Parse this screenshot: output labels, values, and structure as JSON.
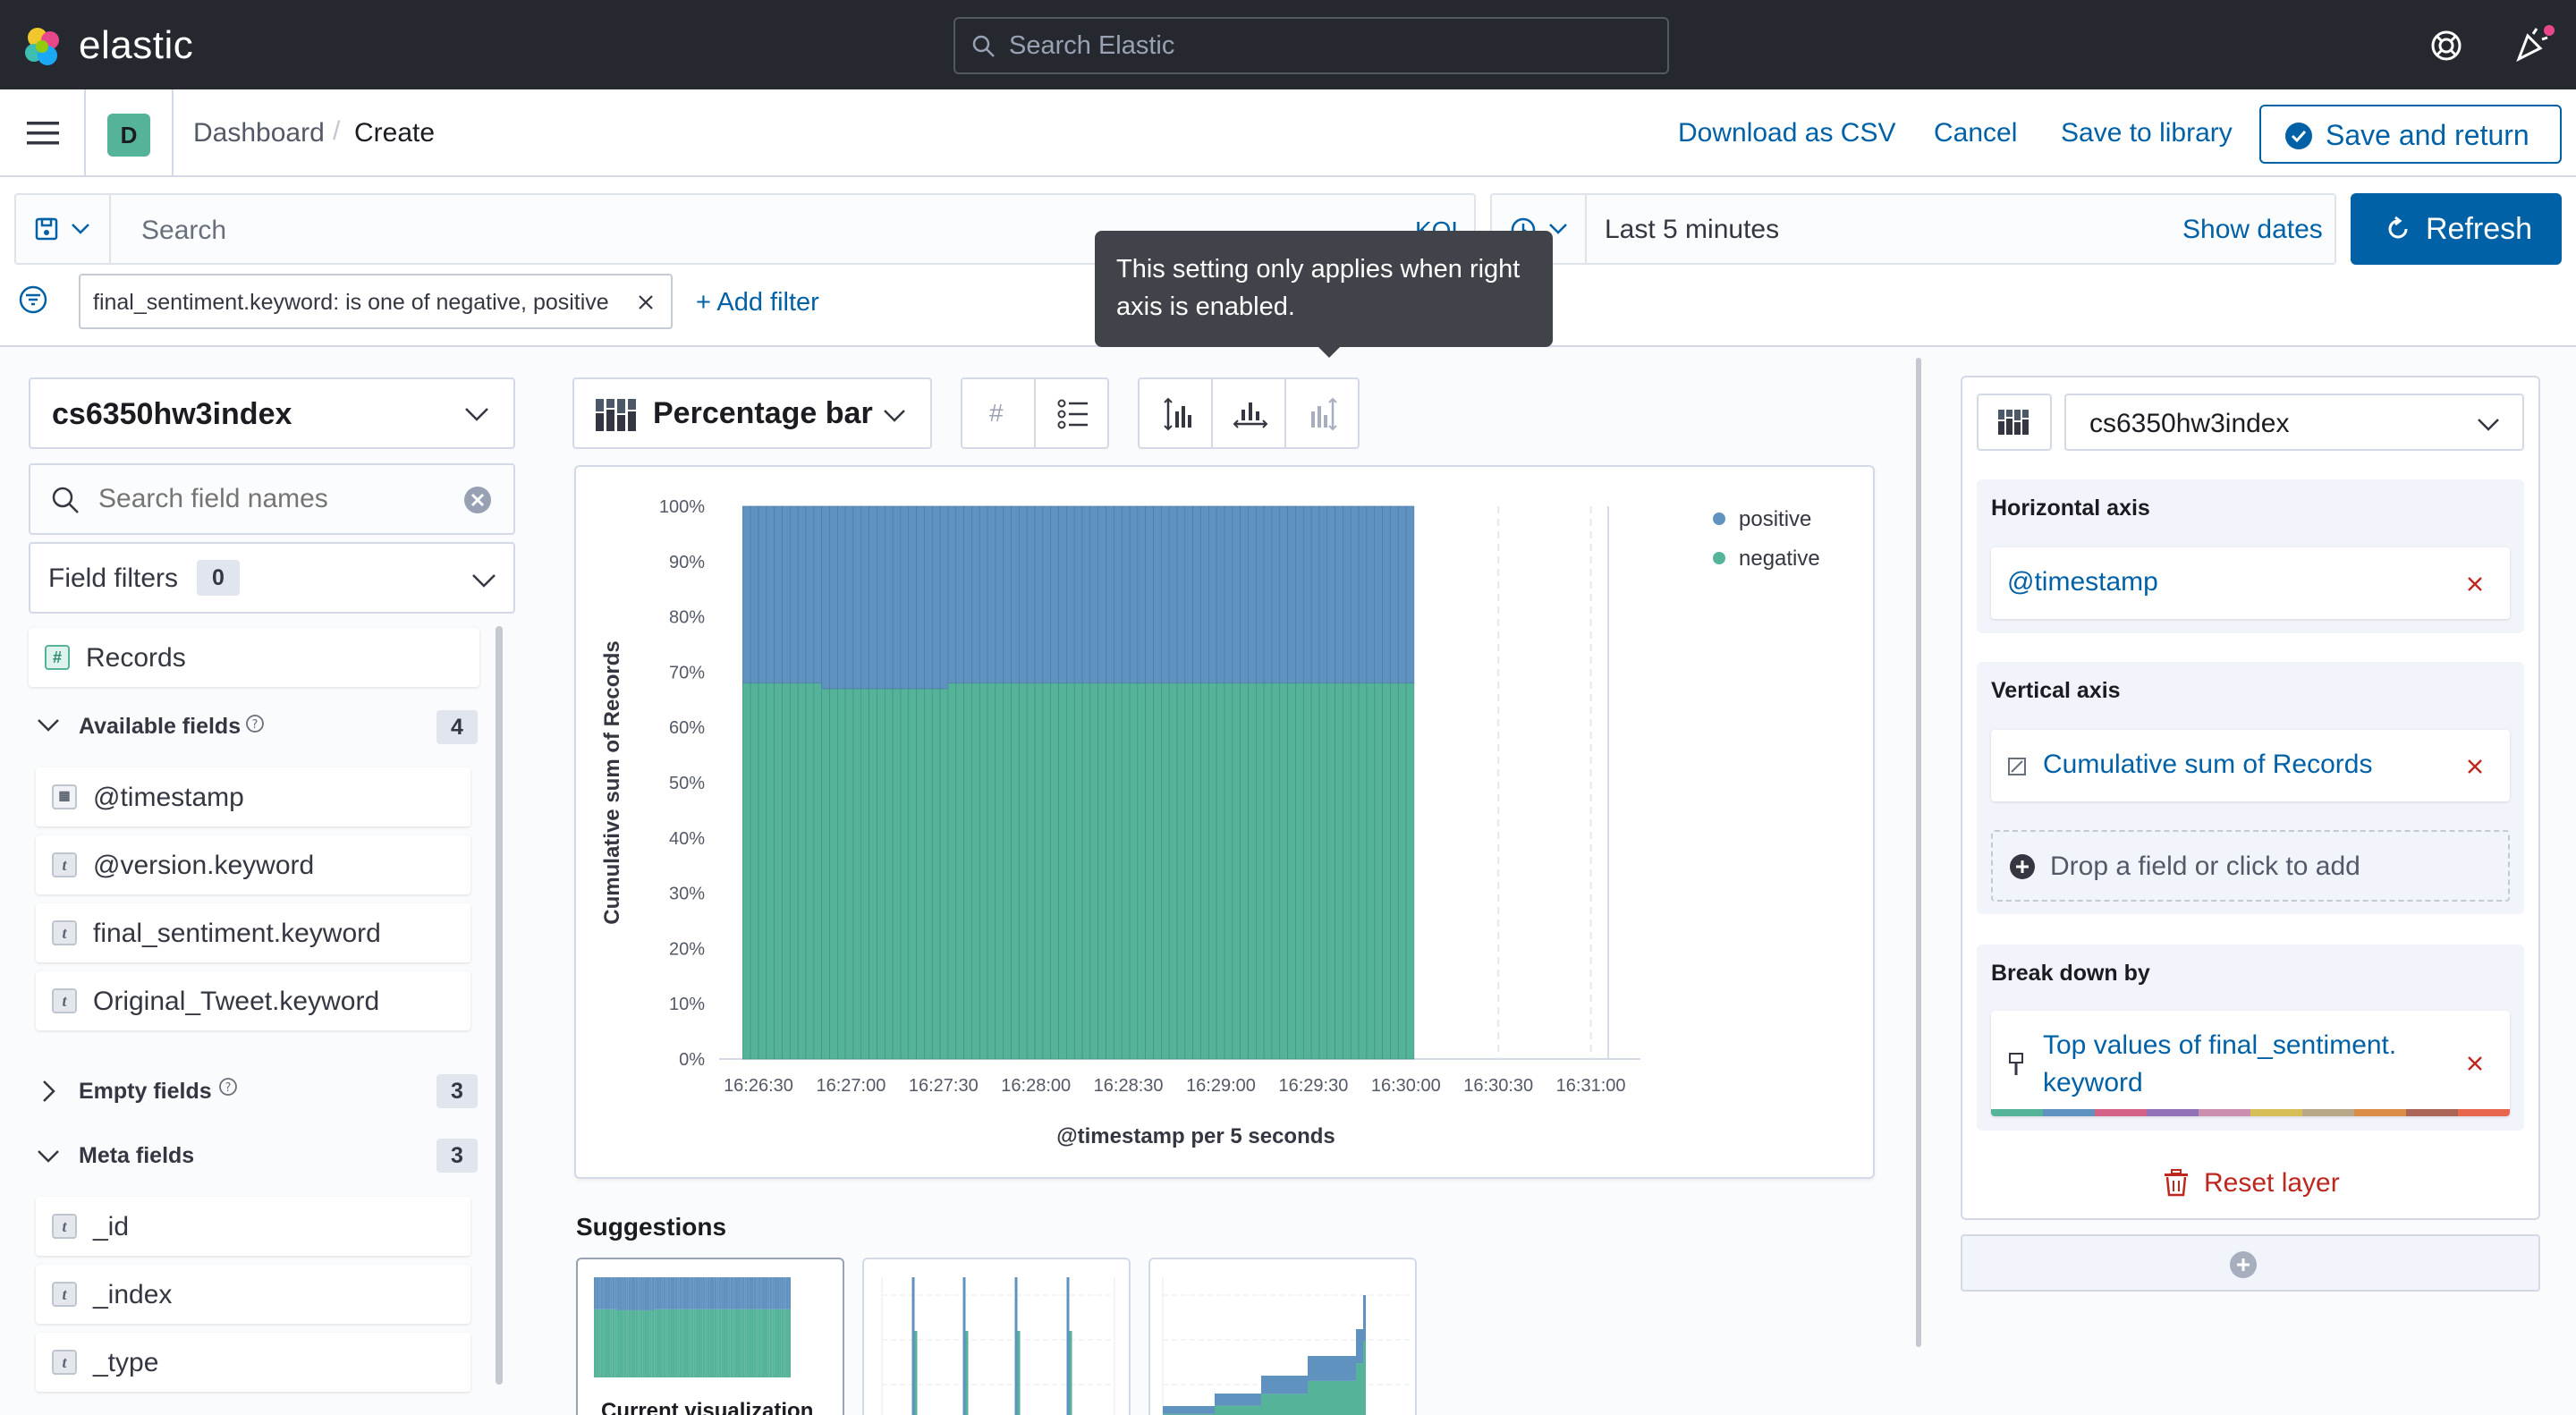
{
  "header": {
    "brand": "elastic",
    "search_placeholder": "Search Elastic"
  },
  "nav": {
    "space_initial": "D",
    "breadcrumb": [
      "Dashboard",
      "Create"
    ],
    "download_csv": "Download as CSV",
    "cancel": "Cancel",
    "save_to_library": "Save to library",
    "save_and_return": "Save and return"
  },
  "query": {
    "placeholder": "Search",
    "language": "KQL",
    "time_range": "Last 5 minutes",
    "show_dates": "Show dates",
    "refresh": "Refresh",
    "filter_pill": "final_sentiment.keyword: is one of negative, positive",
    "add_filter": "+ Add filter"
  },
  "tooltip": {
    "text": "This setting only applies when right axis is enabled."
  },
  "left_panel": {
    "index_pattern": "cs6350hw3index",
    "search_placeholder": "Search field names",
    "field_filters": "Field filters",
    "field_filters_count": "0",
    "records": "Records",
    "available_fields": {
      "label": "Available fields",
      "count": "4"
    },
    "available": [
      {
        "name": "@timestamp",
        "type": "date"
      },
      {
        "name": "@version.keyword",
        "type": "t"
      },
      {
        "name": "final_sentiment.keyword",
        "type": "t"
      },
      {
        "name": "Original_Tweet.keyword",
        "type": "t"
      }
    ],
    "empty_fields": {
      "label": "Empty fields",
      "count": "3"
    },
    "meta_fields": {
      "label": "Meta fields",
      "count": "3"
    },
    "meta": [
      {
        "name": "_id",
        "type": "t"
      },
      {
        "name": "_index",
        "type": "t"
      },
      {
        "name": "_type",
        "type": "t"
      }
    ]
  },
  "toolbar": {
    "chart_type": "Percentage bar"
  },
  "chart_data": {
    "type": "bar",
    "stacking": "percentage",
    "title": "",
    "xlabel": "@timestamp per 5 seconds",
    "ylabel": "Cumulative sum of Records",
    "ylim": [
      0,
      100
    ],
    "y_ticks": [
      "0%",
      "10%",
      "20%",
      "30%",
      "40%",
      "50%",
      "60%",
      "70%",
      "80%",
      "90%",
      "100%"
    ],
    "x_ticks": [
      "16:26:30",
      "16:27:00",
      "16:27:30",
      "16:28:00",
      "16:28:30",
      "16:29:00",
      "16:29:30",
      "16:30:00",
      "16:30:30",
      "16:31:00"
    ],
    "legend_position": "top-right",
    "grid": true,
    "series": [
      {
        "name": "positive",
        "color": "#6092c0"
      },
      {
        "name": "negative",
        "color": "#54b399"
      }
    ],
    "negative_share_percent": [
      68,
      68,
      68,
      68,
      68,
      68,
      68,
      68,
      68,
      68,
      67,
      67,
      67,
      67,
      67,
      67,
      67,
      67,
      67,
      67,
      67,
      67,
      67,
      67,
      67,
      67,
      68,
      68,
      68,
      68,
      68,
      68,
      68,
      68,
      68,
      68,
      68,
      68,
      68,
      68,
      68,
      68,
      68,
      68,
      68,
      68,
      68,
      68,
      68,
      68,
      68,
      68,
      68,
      68,
      68,
      68,
      68,
      68,
      68,
      68,
      68,
      68,
      68,
      68,
      68,
      68,
      68,
      68,
      68,
      68,
      68,
      68,
      68,
      68,
      68,
      68,
      68,
      68,
      68,
      68,
      68,
      68,
      68,
      68,
      68
    ]
  },
  "suggestions": {
    "title": "Suggestions",
    "current": "Current visualization"
  },
  "right_panel": {
    "index_pattern": "cs6350hw3index",
    "horizontal_axis": {
      "label": "Horizontal axis",
      "field": "@timestamp"
    },
    "vertical_axis": {
      "label": "Vertical axis",
      "field": "Cumulative sum of Records",
      "drop_hint": "Drop a field or click to add"
    },
    "breakdown": {
      "label": "Break down by",
      "field_line1": "Top values of final_sentiment.",
      "field_line2": "keyword"
    },
    "reset_layer": "Reset layer",
    "palette": [
      "#54b399",
      "#6092c0",
      "#d36086",
      "#9170b8",
      "#ca8eae",
      "#d6bf57",
      "#b9a888",
      "#da8b45",
      "#aa6556",
      "#e7664c"
    ]
  }
}
